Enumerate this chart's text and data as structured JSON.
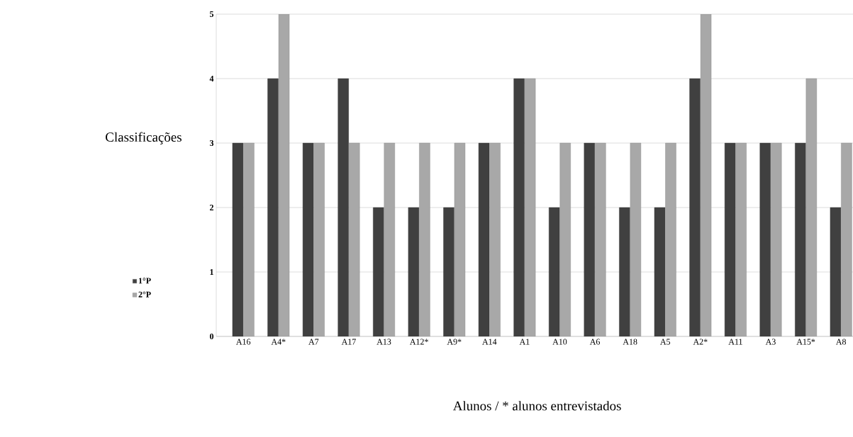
{
  "chart_data": {
    "type": "bar",
    "xlabel": "Alunos / * alunos entrevistados",
    "ylabel": "Classificações",
    "categories": [
      "A16",
      "A4*",
      "A7",
      "A17",
      "A13",
      "A12*",
      "A9*",
      "A14",
      "A1",
      "A10",
      "A6",
      "A18",
      "A5",
      "A2*",
      "A11",
      "A3",
      "A15*",
      "A8"
    ],
    "series": [
      {
        "name": "1°P",
        "color": "#404040",
        "values": [
          3,
          4,
          3,
          4,
          2,
          2,
          2,
          3,
          4,
          2,
          3,
          2,
          2,
          4,
          3,
          3,
          3,
          2
        ]
      },
      {
        "name": "2°P",
        "color": "#a8a8a8",
        "values": [
          3,
          5,
          3,
          3,
          3,
          3,
          3,
          3,
          4,
          3,
          3,
          3,
          3,
          5,
          3,
          3,
          4,
          3
        ]
      }
    ],
    "ylim": [
      0,
      5
    ],
    "yticks": [
      0,
      1,
      2,
      3,
      4,
      5
    ],
    "grid": "y",
    "legend": "left"
  }
}
